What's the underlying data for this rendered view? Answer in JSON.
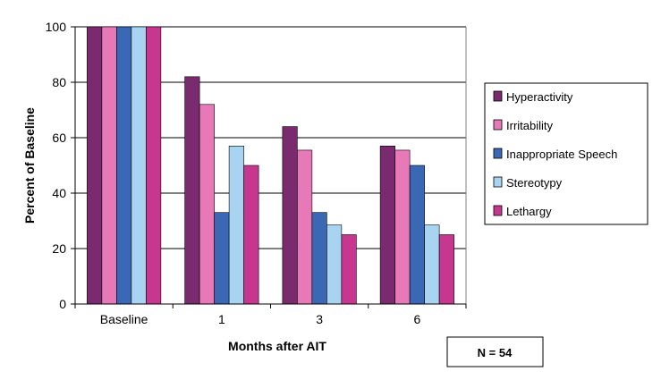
{
  "chart_data": {
    "type": "bar",
    "categories": [
      "Baseline",
      "1",
      "3",
      "6"
    ],
    "xlabel": "Months after AIT",
    "ylabel": "Percent of Baseline",
    "ylim": [
      0,
      100
    ],
    "yticks": [
      0,
      20,
      40,
      60,
      80,
      100
    ],
    "grid": true,
    "legend": "right",
    "series": [
      {
        "name": "Hyperactivity",
        "color": "#7a2a6e",
        "values": [
          100,
          82,
          64,
          57
        ]
      },
      {
        "name": "Irritability",
        "color": "#e879b8",
        "values": [
          100,
          72,
          55.5,
          55.5
        ]
      },
      {
        "name": "Inappropriate Speech",
        "color": "#3b68b4",
        "values": [
          100,
          33,
          33,
          50
        ]
      },
      {
        "name": "Stereotypy",
        "color": "#a8d4f2",
        "values": [
          100,
          57,
          28.5,
          28.5
        ]
      },
      {
        "name": "Lethargy",
        "color": "#c8378f",
        "values": [
          100,
          50,
          25,
          25
        ]
      }
    ],
    "annotation": "N = 54"
  }
}
